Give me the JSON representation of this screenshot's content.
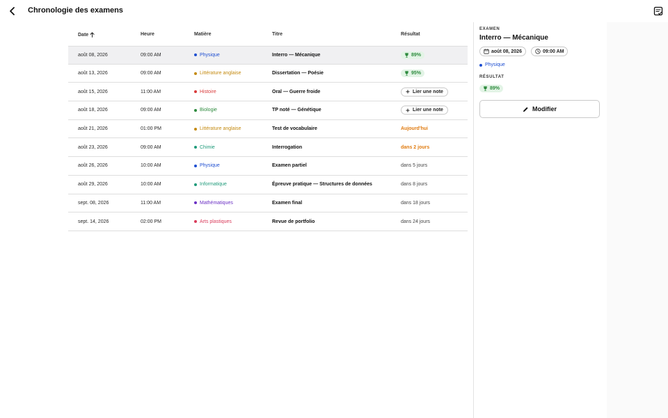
{
  "header": {
    "title": "Chronologie des examens",
    "back_icon": "chevron-left-icon",
    "notes_icon": "notes-icon"
  },
  "table": {
    "columns": {
      "date": "Date",
      "time": "Heure",
      "subject": "Matière",
      "title": "Titre",
      "result": "Résultat"
    },
    "sort": {
      "column": "date",
      "direction": "ascending"
    },
    "rows": [
      {
        "date": "août 08, 2026",
        "time": "09:00 AM",
        "subject": "Physique",
        "subject_color": "#1f4fd1",
        "title": "Interro — Mécanique",
        "result_type": "score",
        "result": "89%",
        "selected": true
      },
      {
        "date": "août 13, 2026",
        "time": "09:00 AM",
        "subject": "Littérature anglaise",
        "subject_color": "#c48a10",
        "title": "Dissertation — Poésie",
        "result_type": "score",
        "result": "95%",
        "selected": false
      },
      {
        "date": "août 15, 2026",
        "time": "11:00 AM",
        "subject": "Histoire",
        "subject_color": "#d93a3a",
        "title": "Oral — Guerre froide",
        "result_type": "link",
        "result": "Lier une note",
        "selected": false
      },
      {
        "date": "août 18, 2026",
        "time": "09:00 AM",
        "subject": "Biologie",
        "subject_color": "#2e8b3e",
        "title": "TP noté — Génétique",
        "result_type": "link",
        "result": "Lier une note",
        "selected": false
      },
      {
        "date": "août 21, 2026",
        "time": "01:00 PM",
        "subject": "Littérature anglaise",
        "subject_color": "#c48a10",
        "title": "Test de vocabulaire",
        "result_type": "rel-orange",
        "result": "Aujourd'hui",
        "selected": false
      },
      {
        "date": "août 23, 2026",
        "time": "09:00 AM",
        "subject": "Chimie",
        "subject_color": "#1f9a7a",
        "title": "Interrogation",
        "result_type": "rel-orange",
        "result": "dans 2 jours",
        "selected": false
      },
      {
        "date": "août 26, 2026",
        "time": "10:00 AM",
        "subject": "Physique",
        "subject_color": "#1f4fd1",
        "title": "Examen partiel",
        "result_type": "rel-plain",
        "result": "dans 5 jours",
        "selected": false
      },
      {
        "date": "août 29, 2026",
        "time": "10:00 AM",
        "subject": "Informatique",
        "subject_color": "#1f9a7a",
        "title": "Épreuve pratique — Structures de données",
        "result_type": "rel-plain",
        "result": "dans 8 jours",
        "selected": false
      },
      {
        "date": "sept. 08, 2026",
        "time": "11:00 AM",
        "subject": "Mathématiques",
        "subject_color": "#6a2fc4",
        "title": "Examen final",
        "result_type": "rel-plain",
        "result": "dans 18 jours",
        "selected": false
      },
      {
        "date": "sept. 14, 2026",
        "time": "02:00 PM",
        "subject": "Arts plastiques",
        "subject_color": "#d93a5a",
        "title": "Revue de portfolio",
        "result_type": "rel-plain",
        "result": "dans 24 jours",
        "selected": false
      }
    ]
  },
  "panel": {
    "kicker": "EXAMEN",
    "title": "Interro — Mécanique",
    "date": "août 08, 2026",
    "time": "09:00 AM",
    "subject": "Physique",
    "subject_color": "#1f4fd1",
    "result_label": "RÉSULTAT",
    "result": "89%",
    "edit_label": "Modifier"
  },
  "colors": {
    "score_bg": "#e3f4e6",
    "score_fg": "#2e8b3e",
    "orange": "#e07b10"
  }
}
